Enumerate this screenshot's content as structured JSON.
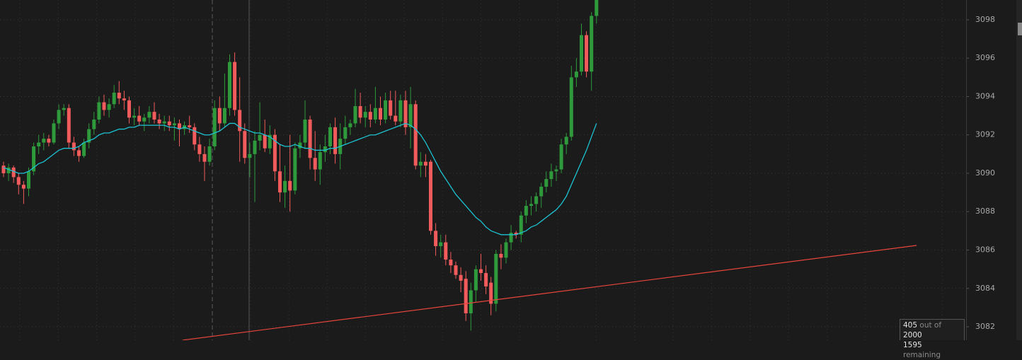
{
  "chart_data": {
    "type": "candlestick",
    "ylim": [
      3081.3,
      3099.03
    ],
    "yticks": [
      3082,
      3084,
      3086,
      3088,
      3090,
      3092,
      3094,
      3096,
      3098
    ],
    "grid": true,
    "up_color": "#2f9a3c",
    "down_color": "#f25b5b",
    "ohlc": [
      [
        3090.4,
        3090.6,
        3089.8,
        3090.0
      ],
      [
        3090.0,
        3090.5,
        3089.6,
        3090.3
      ],
      [
        3090.3,
        3090.4,
        3089.5,
        3089.8
      ],
      [
        3089.8,
        3090.0,
        3088.9,
        3089.4
      ],
      [
        3089.4,
        3089.6,
        3088.4,
        3089.2
      ],
      [
        3089.2,
        3090.3,
        3088.8,
        3090.1
      ],
      [
        3090.1,
        3091.6,
        3089.9,
        3091.4
      ],
      [
        3091.4,
        3092.0,
        3091.0,
        3091.6
      ],
      [
        3091.6,
        3092.1,
        3091.2,
        3091.8
      ],
      [
        3091.8,
        3092.0,
        3091.4,
        3091.6
      ],
      [
        3091.6,
        3092.8,
        3091.5,
        3092.6
      ],
      [
        3092.6,
        3093.6,
        3092.3,
        3093.3
      ],
      [
        3093.3,
        3093.6,
        3093.0,
        3093.4
      ],
      [
        3093.4,
        3093.6,
        3091.3,
        3091.6
      ],
      [
        3091.6,
        3091.9,
        3090.9,
        3091.2
      ],
      [
        3091.2,
        3091.4,
        3090.6,
        3090.9
      ],
      [
        3090.9,
        3091.8,
        3090.8,
        3091.6
      ],
      [
        3091.6,
        3092.6,
        3091.3,
        3092.3
      ],
      [
        3092.3,
        3093.2,
        3092.0,
        3092.8
      ],
      [
        3092.8,
        3094.0,
        3092.6,
        3093.7
      ],
      [
        3093.7,
        3094.1,
        3093.0,
        3093.3
      ],
      [
        3093.3,
        3093.9,
        3092.9,
        3093.6
      ],
      [
        3093.6,
        3094.6,
        3093.4,
        3094.2
      ],
      [
        3094.2,
        3094.8,
        3093.6,
        3093.9
      ],
      [
        3093.9,
        3094.3,
        3093.3,
        3093.8
      ],
      [
        3093.8,
        3094.0,
        3092.6,
        3092.9
      ],
      [
        3092.9,
        3093.4,
        3092.5,
        3093.0
      ],
      [
        3093.0,
        3093.5,
        3092.5,
        3092.7
      ],
      [
        3092.7,
        3093.1,
        3092.2,
        3092.9
      ],
      [
        3092.9,
        3093.5,
        3092.6,
        3093.2
      ],
      [
        3093.2,
        3093.7,
        3092.6,
        3092.8
      ],
      [
        3092.8,
        3093.1,
        3092.3,
        3092.6
      ],
      [
        3092.6,
        3093.0,
        3092.2,
        3092.7
      ],
      [
        3092.7,
        3093.0,
        3092.2,
        3092.5
      ],
      [
        3092.5,
        3092.9,
        3091.7,
        3092.6
      ],
      [
        3092.6,
        3092.8,
        3091.4,
        3092.3
      ],
      [
        3092.3,
        3092.7,
        3092.0,
        3092.5
      ],
      [
        3092.5,
        3093.0,
        3092.1,
        3092.4
      ],
      [
        3092.4,
        3092.6,
        3091.2,
        3091.5
      ],
      [
        3091.5,
        3091.9,
        3090.6,
        3091.0
      ],
      [
        3091.0,
        3091.4,
        3089.6,
        3090.6
      ],
      [
        3090.6,
        3091.8,
        3090.4,
        3091.4
      ],
      [
        3091.4,
        3093.8,
        3091.2,
        3093.4
      ],
      [
        3093.4,
        3094.0,
        3092.2,
        3092.6
      ],
      [
        3092.6,
        3095.2,
        3092.4,
        3093.4
      ],
      [
        3093.4,
        3096.2,
        3093.0,
        3095.8
      ],
      [
        3095.8,
        3096.3,
        3093.0,
        3093.3
      ],
      [
        3093.3,
        3095.0,
        3090.6,
        3092.2
      ],
      [
        3092.2,
        3092.6,
        3090.5,
        3090.8
      ],
      [
        3090.8,
        3091.6,
        3089.8,
        3091.0
      ],
      [
        3091.0,
        3092.2,
        3088.5,
        3091.7
      ],
      [
        3091.7,
        3093.7,
        3091.2,
        3092.0
      ],
      [
        3092.0,
        3092.8,
        3091.1,
        3091.3
      ],
      [
        3091.3,
        3092.5,
        3091.0,
        3092.0
      ],
      [
        3092.0,
        3092.3,
        3089.6,
        3090.1
      ],
      [
        3090.1,
        3091.5,
        3088.5,
        3089.0
      ],
      [
        3089.0,
        3090.4,
        3088.2,
        3089.6
      ],
      [
        3089.6,
        3092.0,
        3088.0,
        3089.1
      ],
      [
        3089.1,
        3091.6,
        3088.9,
        3091.3
      ],
      [
        3091.3,
        3092.0,
        3090.8,
        3091.6
      ],
      [
        3091.6,
        3093.8,
        3091.3,
        3092.8
      ],
      [
        3092.8,
        3093.0,
        3090.2,
        3090.8
      ],
      [
        3090.8,
        3092.2,
        3089.6,
        3090.2
      ],
      [
        3090.2,
        3091.5,
        3089.4,
        3091.1
      ],
      [
        3091.1,
        3092.0,
        3090.6,
        3091.4
      ],
      [
        3091.4,
        3092.6,
        3091.0,
        3092.4
      ],
      [
        3092.4,
        3092.9,
        3090.5,
        3091.0
      ],
      [
        3091.0,
        3092.6,
        3090.2,
        3091.8
      ],
      [
        3091.8,
        3093.0,
        3091.5,
        3092.4
      ],
      [
        3092.4,
        3092.8,
        3092.0,
        3092.6
      ],
      [
        3092.6,
        3094.4,
        3092.4,
        3093.5
      ],
      [
        3093.5,
        3094.2,
        3092.6,
        3092.9
      ],
      [
        3092.9,
        3093.5,
        3092.4,
        3093.2
      ],
      [
        3093.2,
        3093.6,
        3092.4,
        3092.8
      ],
      [
        3092.8,
        3094.5,
        3092.6,
        3093.4
      ],
      [
        3093.4,
        3094.0,
        3092.5,
        3092.8
      ],
      [
        3092.8,
        3094.2,
        3092.6,
        3093.8
      ],
      [
        3093.8,
        3094.3,
        3092.8,
        3093.0
      ],
      [
        3093.0,
        3094.3,
        3092.5,
        3092.7
      ],
      [
        3092.7,
        3094.1,
        3092.4,
        3093.8
      ],
      [
        3093.8,
        3094.3,
        3092.0,
        3092.4
      ],
      [
        3092.4,
        3094.5,
        3091.3,
        3093.6
      ],
      [
        3093.6,
        3093.8,
        3090.2,
        3090.4
      ],
      [
        3090.4,
        3091.1,
        3089.8,
        3090.6
      ],
      [
        3090.6,
        3091.0,
        3089.8,
        3090.4
      ],
      [
        3090.6,
        3090.7,
        3086.8,
        3087.0
      ],
      [
        3087.0,
        3087.4,
        3085.7,
        3086.2
      ],
      [
        3086.2,
        3086.8,
        3085.6,
        3086.4
      ],
      [
        3086.4,
        3086.8,
        3085.2,
        3085.5
      ],
      [
        3085.5,
        3085.9,
        3084.8,
        3085.2
      ],
      [
        3085.2,
        3085.4,
        3084.5,
        3084.7
      ],
      [
        3084.7,
        3085.1,
        3083.8,
        3084.4
      ],
      [
        3084.5,
        3084.9,
        3082.3,
        3082.7
      ],
      [
        3082.7,
        3084.3,
        3081.8,
        3083.9
      ],
      [
        3083.9,
        3085.2,
        3083.3,
        3085.0
      ],
      [
        3085.0,
        3085.8,
        3084.4,
        3084.8
      ],
      [
        3084.8,
        3085.2,
        3083.7,
        3084.1
      ],
      [
        3084.3,
        3084.6,
        3082.6,
        3083.2
      ],
      [
        3083.2,
        3086.0,
        3082.8,
        3085.8
      ],
      [
        3085.8,
        3086.3,
        3085.0,
        3085.6
      ],
      [
        3085.6,
        3086.6,
        3085.3,
        3086.4
      ],
      [
        3086.4,
        3087.3,
        3086.0,
        3086.9
      ],
      [
        3086.9,
        3087.0,
        3086.6,
        3086.8
      ],
      [
        3086.8,
        3088.0,
        3086.4,
        3087.8
      ],
      [
        3087.8,
        3088.6,
        3087.4,
        3088.3
      ],
      [
        3088.3,
        3088.8,
        3087.8,
        3088.4
      ],
      [
        3088.4,
        3089.0,
        3088.0,
        3088.8
      ],
      [
        3088.8,
        3089.5,
        3088.2,
        3089.3
      ],
      [
        3089.3,
        3090.1,
        3089.0,
        3089.7
      ],
      [
        3089.7,
        3090.5,
        3089.3,
        3090.1
      ],
      [
        3090.1,
        3090.4,
        3089.6,
        3090.2
      ],
      [
        3090.2,
        3091.8,
        3090.0,
        3091.5
      ],
      [
        3091.5,
        3092.1,
        3091.0,
        3091.9
      ],
      [
        3091.9,
        3095.6,
        3091.7,
        3095.0
      ],
      [
        3095.0,
        3096.0,
        3094.5,
        3095.3
      ],
      [
        3095.3,
        3097.8,
        3095.1,
        3097.2
      ],
      [
        3097.2,
        3097.4,
        3095.0,
        3095.3
      ],
      [
        3095.3,
        3098.4,
        3094.3,
        3098.2
      ],
      [
        3098.2,
        3099.5,
        3097.8,
        3099.2
      ]
    ],
    "moving_average": {
      "color": "#1cc3d3",
      "values": [
        3090.3,
        3090.2,
        3090.1,
        3090.0,
        3090.0,
        3090.1,
        3090.3,
        3090.5,
        3090.6,
        3090.8,
        3091.0,
        3091.2,
        3091.3,
        3091.3,
        3091.3,
        3091.4,
        3091.6,
        3091.7,
        3091.8,
        3092.0,
        3092.1,
        3092.1,
        3092.2,
        3092.3,
        3092.3,
        3092.4,
        3092.4,
        3092.5,
        3092.5,
        3092.5,
        3092.5,
        3092.5,
        3092.5,
        3092.4,
        3092.4,
        3092.3,
        3092.4,
        3092.3,
        3092.2,
        3092.1,
        3092.0,
        3092.0,
        3092.1,
        3092.2,
        3092.4,
        3092.6,
        3092.6,
        3092.4,
        3092.3,
        3092.2,
        3092.1,
        3092.1,
        3092.0,
        3091.9,
        3091.7,
        3091.5,
        3091.4,
        3091.4,
        3091.5,
        3091.4,
        3091.3,
        3091.3,
        3091.2,
        3091.2,
        3091.2,
        3091.3,
        3091.3,
        3091.4,
        3091.5,
        3091.6,
        3091.7,
        3091.8,
        3091.9,
        3092.0,
        3092.0,
        3092.1,
        3092.2,
        3092.3,
        3092.4,
        3092.5,
        3092.6,
        3092.5,
        3092.3,
        3092.0,
        3091.6,
        3091.1,
        3090.6,
        3090.1,
        3089.7,
        3089.3,
        3088.9,
        3088.6,
        3088.3,
        3088.0,
        3087.7,
        3087.5,
        3087.2,
        3087.0,
        3086.9,
        3086.8,
        3086.8,
        3086.8,
        3086.8,
        3086.9,
        3087.0,
        3087.2,
        3087.3,
        3087.5,
        3087.7,
        3087.9,
        3088.1,
        3088.4,
        3088.8,
        3089.4,
        3090.0,
        3090.6,
        3091.2,
        3091.9,
        3092.6
      ]
    },
    "trendline": {
      "color": "#e8453c",
      "x": [
        35.6,
        181.7
      ],
      "values": [
        3081.3,
        3086.24
      ]
    }
  },
  "counter": {
    "shown": 405,
    "of": "out of",
    "total": 2000,
    "remaining_count": 1595,
    "remaining": "remaining"
  }
}
